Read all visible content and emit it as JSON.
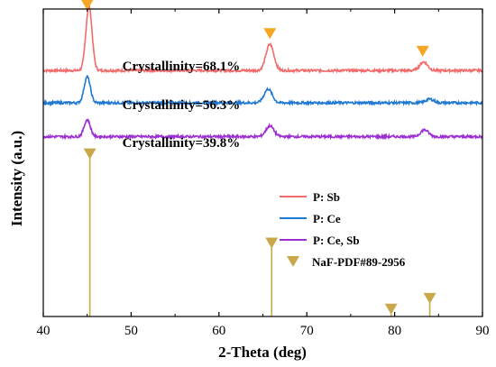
{
  "chart_data": {
    "type": "line",
    "xlabel": "2-Theta (deg)",
    "ylabel": "Intensity (a.u.)",
    "xlim": [
      40,
      90
    ],
    "xticks": [
      40,
      50,
      60,
      70,
      80,
      90
    ],
    "y_ticks_shown": false,
    "series": [
      {
        "name": "P: Sb",
        "color": "#f26b6b",
        "baseline": 0.8,
        "noise": 0.004,
        "peaks": [
          {
            "x": 45.2,
            "height": 0.21,
            "width": 0.35
          },
          {
            "x": 65.8,
            "height": 0.085,
            "width": 0.45
          },
          {
            "x": 83.3,
            "height": 0.028,
            "width": 0.45
          }
        ],
        "annotation": "Crystallinity=68.1%",
        "markers_at": [
          45.0,
          65.8,
          83.2
        ]
      },
      {
        "name": "P: Ce",
        "color": "#1f78d1",
        "baseline": 0.695,
        "noise": 0.004,
        "peaks": [
          {
            "x": 45.0,
            "height": 0.085,
            "width": 0.35
          },
          {
            "x": 65.6,
            "height": 0.045,
            "width": 0.45
          },
          {
            "x": 84.0,
            "height": 0.012,
            "width": 0.45
          }
        ],
        "annotation": "Crystallinity=56.3%"
      },
      {
        "name": "P: Ce, Sb",
        "color": "#9b2fd3",
        "baseline": 0.585,
        "noise": 0.004,
        "peaks": [
          {
            "x": 45.0,
            "height": 0.055,
            "width": 0.35
          },
          {
            "x": 65.8,
            "height": 0.035,
            "width": 0.45
          },
          {
            "x": 83.4,
            "height": 0.022,
            "width": 0.45
          }
        ],
        "annotation": "Crystallinity=39.8%"
      }
    ],
    "reference": {
      "name": "NaF-PDF#89-2956",
      "color": "#c9a84c",
      "sticks": [
        {
          "x": 45.3,
          "top": 0.535
        },
        {
          "x": 66.0,
          "top": 0.245
        },
        {
          "x": 79.6,
          "top": 0.03
        },
        {
          "x": 84.0,
          "top": 0.065
        }
      ]
    },
    "legend_position": "right-middle"
  }
}
